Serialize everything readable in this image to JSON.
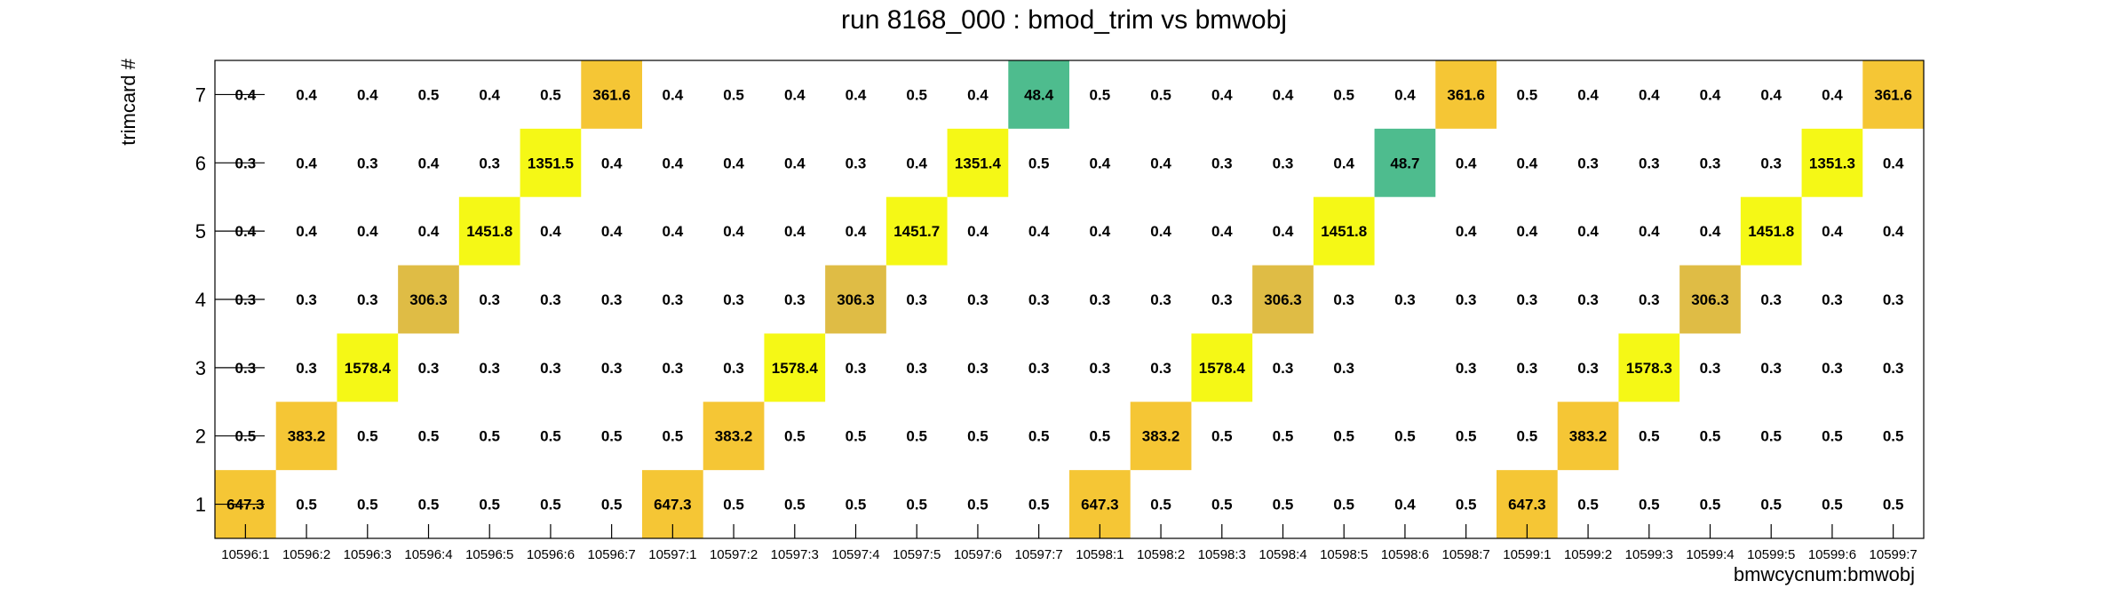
{
  "chart_data": {
    "type": "heatmap",
    "title": "run 8168_000 : bmod_trim vs bmwobj",
    "xlabel": "bmwcycnum:bmwobj",
    "ylabel": "trimcard #",
    "x_categories": [
      "10596:1",
      "10596:2",
      "10596:3",
      "10596:4",
      "10596:5",
      "10596:6",
      "10596:7",
      "10597:1",
      "10597:2",
      "10597:3",
      "10597:4",
      "10597:5",
      "10597:6",
      "10597:7",
      "10598:1",
      "10598:2",
      "10598:3",
      "10598:4",
      "10598:5",
      "10598:6",
      "10598:7",
      "10599:1",
      "10599:2",
      "10599:3",
      "10599:4",
      "10599:5",
      "10599:6",
      "10599:7"
    ],
    "y_categories": [
      "1",
      "2",
      "3",
      "4",
      "5",
      "6",
      "7"
    ],
    "values": [
      [
        "647.3",
        "0.5",
        "0.5",
        "0.5",
        "0.5",
        "0.5",
        "0.5",
        "647.3",
        "0.5",
        "0.5",
        "0.5",
        "0.5",
        "0.5",
        "0.5",
        "647.3",
        "0.5",
        "0.5",
        "0.5",
        "0.5",
        "0.4",
        "0.5",
        "647.3",
        "0.5",
        "0.5",
        "0.5",
        "0.5",
        "0.5",
        "0.5"
      ],
      [
        "0.5",
        "383.2",
        "0.5",
        "0.5",
        "0.5",
        "0.5",
        "0.5",
        "0.5",
        "383.2",
        "0.5",
        "0.5",
        "0.5",
        "0.5",
        "0.5",
        "0.5",
        "383.2",
        "0.5",
        "0.5",
        "0.5",
        "0.5",
        "0.5",
        "0.5",
        "383.2",
        "0.5",
        "0.5",
        "0.5",
        "0.5",
        "0.5"
      ],
      [
        "0.3",
        "0.3",
        "1578.4",
        "0.3",
        "0.3",
        "0.3",
        "0.3",
        "0.3",
        "0.3",
        "1578.4",
        "0.3",
        "0.3",
        "0.3",
        "0.3",
        "0.3",
        "0.3",
        "1578.4",
        "0.3",
        "0.3",
        "",
        "0.3",
        "0.3",
        "0.3",
        "1578.3",
        "0.3",
        "0.3",
        "0.3",
        "0.3"
      ],
      [
        "0.3",
        "0.3",
        "0.3",
        "306.3",
        "0.3",
        "0.3",
        "0.3",
        "0.3",
        "0.3",
        "0.3",
        "306.3",
        "0.3",
        "0.3",
        "0.3",
        "0.3",
        "0.3",
        "0.3",
        "306.3",
        "0.3",
        "0.3",
        "0.3",
        "0.3",
        "0.3",
        "0.3",
        "306.3",
        "0.3",
        "0.3",
        "0.3"
      ],
      [
        "0.4",
        "0.4",
        "0.4",
        "0.4",
        "1451.8",
        "0.4",
        "0.4",
        "0.4",
        "0.4",
        "0.4",
        "0.4",
        "1451.7",
        "0.4",
        "0.4",
        "0.4",
        "0.4",
        "0.4",
        "0.4",
        "1451.8",
        "",
        "0.4",
        "0.4",
        "0.4",
        "0.4",
        "0.4",
        "1451.8",
        "0.4",
        "0.4"
      ],
      [
        "0.3",
        "0.4",
        "0.3",
        "0.4",
        "0.3",
        "1351.5",
        "0.4",
        "0.4",
        "0.4",
        "0.4",
        "0.3",
        "0.4",
        "1351.4",
        "0.5",
        "0.4",
        "0.4",
        "0.3",
        "0.3",
        "0.4",
        "48.7",
        "0.4",
        "0.4",
        "0.3",
        "0.3",
        "0.3",
        "0.3",
        "1351.3",
        "0.4"
      ],
      [
        "0.4",
        "0.4",
        "0.4",
        "0.5",
        "0.4",
        "0.5",
        "361.6",
        "0.4",
        "0.5",
        "0.4",
        "0.4",
        "0.5",
        "0.4",
        "48.4",
        "0.5",
        "0.5",
        "0.4",
        "0.4",
        "0.5",
        "0.4",
        "361.6",
        "0.5",
        "0.4",
        "0.4",
        "0.4",
        "0.4",
        "0.4",
        "361.6"
      ]
    ],
    "palette": {
      "1578": "#f5f816",
      "1451": "#f5f816",
      "1351": "#f5f816",
      "647": "#f5c635",
      "383": "#f5c635",
      "361": "#f5c635",
      "306": "#dfbc45",
      "48": "#4ebc8e"
    },
    "grid": false
  }
}
